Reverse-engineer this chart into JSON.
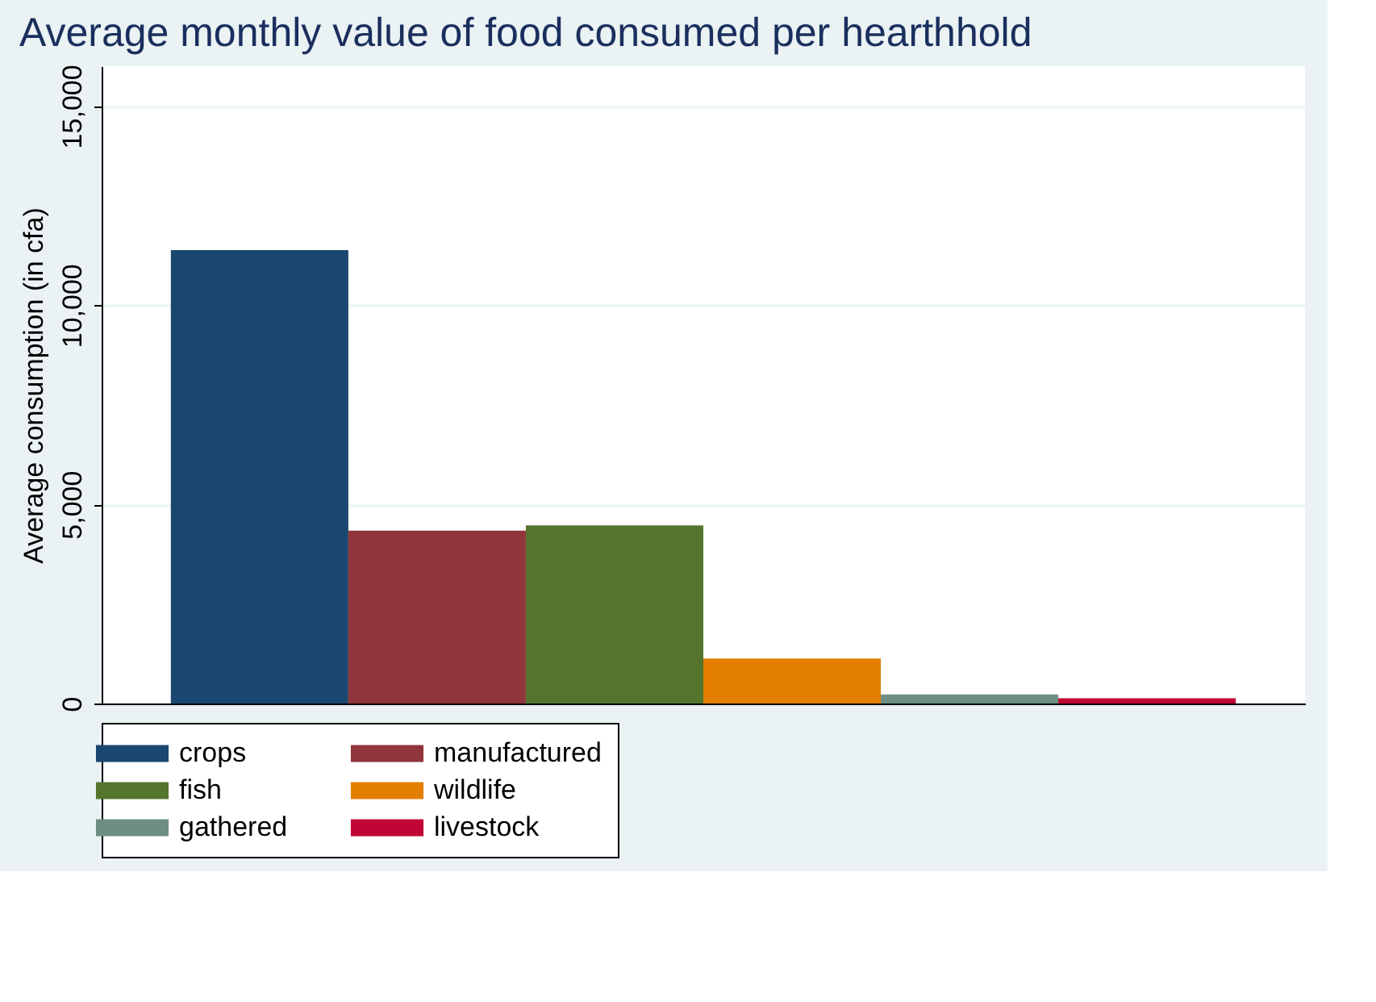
{
  "chart_data": {
    "type": "bar",
    "title": "Average monthly value of food consumed per hearthhold",
    "ylabel": "Average consumption (in cfa)",
    "categories": [
      null
    ],
    "series": [
      {
        "name": "crops",
        "color": "#1a476f",
        "values": [
          11380
        ]
      },
      {
        "name": "manufactured",
        "color": "#90353b",
        "values": [
          4340
        ]
      },
      {
        "name": "fish",
        "color": "#55752f",
        "values": [
          4470
        ]
      },
      {
        "name": "wildlife",
        "color": "#e37e00",
        "values": [
          1130
        ]
      },
      {
        "name": "gathered",
        "color": "#6e8e84",
        "values": [
          230
        ]
      },
      {
        "name": "livestock",
        "color": "#c10534",
        "values": [
          130
        ]
      }
    ],
    "ylim": [
      0,
      16000
    ],
    "yticks": [
      {
        "value": 0,
        "label": "0"
      },
      {
        "value": 5000,
        "label": "5,000"
      },
      {
        "value": 10000,
        "label": "10,000"
      },
      {
        "value": 15000,
        "label": "15,000"
      }
    ],
    "grid": "y",
    "legend": "bottom",
    "tick_labels": "y"
  }
}
